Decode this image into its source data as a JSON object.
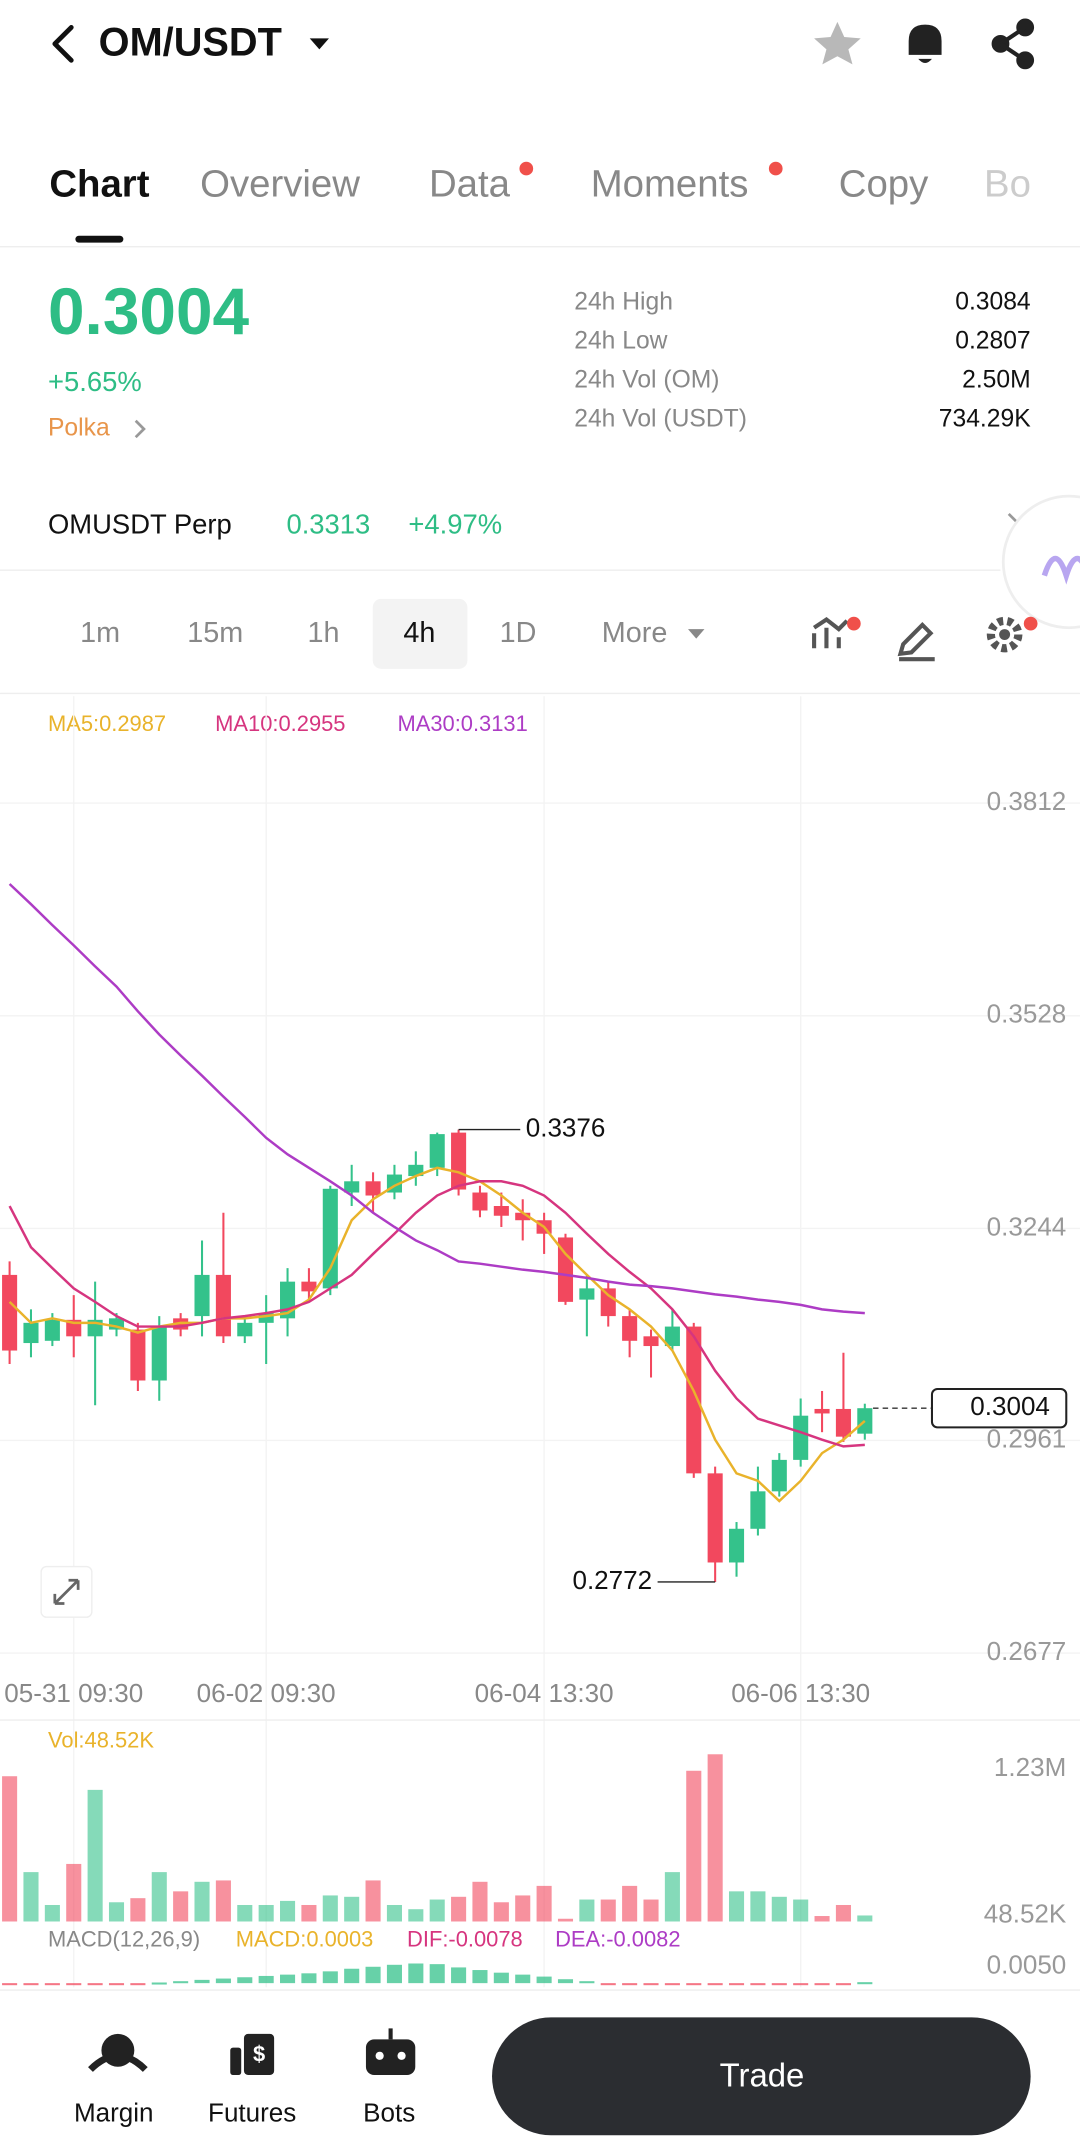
{
  "header": {
    "pair": "OM/USDT"
  },
  "tabs": [
    "Chart",
    "Overview",
    "Data",
    "Moments",
    "Copy",
    "Bo"
  ],
  "ticker": {
    "price": "0.3004",
    "change": "+5.65%",
    "tag": "Polka",
    "stats": [
      {
        "label": "24h High",
        "value": "0.3084"
      },
      {
        "label": "24h Low",
        "value": "0.2807"
      },
      {
        "label": "24h Vol (OM)",
        "value": "2.50M"
      },
      {
        "label": "24h Vol (USDT)",
        "value": "734.29K"
      }
    ]
  },
  "perp": {
    "name": "OMUSDT Perp",
    "price": "0.3313",
    "change": "+4.97%"
  },
  "intervals": [
    "1m",
    "15m",
    "1h",
    "4h",
    "1D",
    "More"
  ],
  "active_interval": 3,
  "chart_data": {
    "type": "candlestick",
    "categories": [
      null,
      null,
      null,
      "05-31 09:30",
      null,
      null,
      null,
      null,
      null,
      null,
      null,
      null,
      "06-02 09:30",
      null,
      null,
      null,
      null,
      null,
      null,
      null,
      null,
      null,
      null,
      null,
      null,
      "06-04 13:30",
      null,
      null,
      null,
      null,
      null,
      null,
      null,
      null,
      null,
      null,
      null,
      "06-06 13:30",
      null,
      null,
      null
    ],
    "open": [
      0.3182,
      0.3091,
      0.3094,
      0.3122,
      0.31,
      0.3109,
      0.3109,
      0.3041,
      0.3124,
      0.3127,
      0.3182,
      0.31,
      0.3118,
      0.3124,
      0.3173,
      0.3164,
      0.3292,
      0.3307,
      0.3292,
      0.3314,
      0.3325,
      0.3372,
      0.3292,
      0.3274,
      0.3265,
      0.3255,
      0.3232,
      0.3149,
      0.3164,
      0.3127,
      0.31,
      0.3087,
      0.3113,
      0.2917,
      0.2798,
      0.2843,
      0.2893,
      0.2935,
      0.3003,
      0.3003,
      0.297
    ],
    "high": [
      0.32,
      0.3136,
      0.3131,
      0.3155,
      0.3173,
      0.3131,
      0.3118,
      0.3127,
      0.3131,
      0.3228,
      0.3265,
      0.3127,
      0.3155,
      0.3191,
      0.3191,
      0.3301,
      0.3329,
      0.3319,
      0.3329,
      0.3347,
      0.3372,
      0.3376,
      0.3301,
      0.3292,
      0.3283,
      0.3265,
      0.3237,
      0.3182,
      0.3173,
      0.3136,
      0.3109,
      0.3136,
      0.3118,
      0.2926,
      0.2852,
      0.2926,
      0.2944,
      0.3017,
      0.3027,
      0.3078,
      0.301
    ],
    "low": [
      0.3063,
      0.3072,
      0.3087,
      0.3072,
      0.3008,
      0.31,
      0.3027,
      0.3014,
      0.31,
      0.31,
      0.3091,
      0.3091,
      0.3063,
      0.31,
      0.3149,
      0.3155,
      0.3274,
      0.3265,
      0.3283,
      0.3301,
      0.3314,
      0.3288,
      0.3259,
      0.3246,
      0.3228,
      0.321,
      0.3142,
      0.31,
      0.3113,
      0.3072,
      0.3045,
      0.3081,
      0.2911,
      0.2772,
      0.2779,
      0.2834,
      0.2886,
      0.2926,
      0.2972,
      0.2959,
      0.2962
    ],
    "close": [
      0.3081,
      0.3118,
      0.3122,
      0.31,
      0.3122,
      0.3124,
      0.3041,
      0.3113,
      0.3109,
      0.3182,
      0.31,
      0.3118,
      0.3131,
      0.3173,
      0.316,
      0.3297,
      0.3307,
      0.3288,
      0.3316,
      0.3329,
      0.337,
      0.3296,
      0.3268,
      0.3261,
      0.3255,
      0.3237,
      0.3146,
      0.3164,
      0.3127,
      0.3094,
      0.3087,
      0.3113,
      0.2917,
      0.2798,
      0.2843,
      0.2893,
      0.2935,
      0.2994,
      0.2997,
      0.2966,
      0.3004
    ],
    "up_color": "#34c28b",
    "down_color": "#f2485e",
    "ylim": [
      0.2659,
      0.3887
    ],
    "yticks": [
      0.3812,
      0.3528,
      0.3244,
      0.2961,
      0.2677
    ],
    "ma": [
      {
        "label": "MA5:0.2987",
        "color": "#e9b32b",
        "values": [
          0.3146,
          0.3118,
          0.3124,
          0.3118,
          0.3118,
          0.3113,
          0.3105,
          0.3113,
          0.3118,
          0.3118,
          0.3124,
          0.3124,
          0.3127,
          0.3131,
          0.3149,
          0.3191,
          0.3255,
          0.3283,
          0.3301,
          0.3314,
          0.3325,
          0.3319,
          0.3307,
          0.3288,
          0.3265,
          0.3246,
          0.321,
          0.3182,
          0.3155,
          0.3136,
          0.3113,
          0.3081,
          0.3027,
          0.2962,
          0.2917,
          0.2907,
          0.288,
          0.2907,
          0.2944,
          0.2962,
          0.2987
        ]
      },
      {
        "label": "MA10:0.2955",
        "color": "#d6357f",
        "values": [
          0.3274,
          0.3219,
          0.3191,
          0.3164,
          0.3146,
          0.3127,
          0.3113,
          0.3113,
          0.3113,
          0.3118,
          0.3124,
          0.3127,
          0.3131,
          0.3136,
          0.3146,
          0.3164,
          0.3182,
          0.321,
          0.3237,
          0.3265,
          0.3288,
          0.3301,
          0.3307,
          0.3307,
          0.3301,
          0.3288,
          0.3265,
          0.3237,
          0.321,
          0.3186,
          0.3164,
          0.3136,
          0.31,
          0.3054,
          0.3017,
          0.299,
          0.2981,
          0.2972,
          0.2962,
          0.2953,
          0.2955
        ]
      },
      {
        "label": "MA30:0.3131",
        "color": "#ad3cc5",
        "values": [
          0.3704,
          0.3677,
          0.3649,
          0.3622,
          0.3594,
          0.3567,
          0.3534,
          0.3503,
          0.3475,
          0.3448,
          0.342,
          0.3393,
          0.3365,
          0.3343,
          0.3325,
          0.3307,
          0.3288,
          0.3265,
          0.3246,
          0.3228,
          0.3215,
          0.32,
          0.3197,
          0.3193,
          0.3189,
          0.3186,
          0.3182,
          0.3178,
          0.3173,
          0.3169,
          0.3167,
          0.3164,
          0.316,
          0.3156,
          0.3153,
          0.3149,
          0.3146,
          0.3142,
          0.3136,
          0.3133,
          0.3131
        ]
      }
    ],
    "high_label": "0.3376",
    "low_label": "0.2772",
    "last_label": "0.3004",
    "volume": {
      "label": "Vol:48.52K",
      "ylim": [
        0,
        1370000
      ],
      "yticks": [
        {
          "value": 1230000,
          "label": "1.23M"
        },
        {
          "value": 48520,
          "label": "48.52K"
        }
      ],
      "values": [
        1171000,
        398000,
        133000,
        464000,
        1061000,
        155000,
        188000,
        398000,
        243000,
        320000,
        331000,
        133000,
        133000,
        166000,
        133000,
        210000,
        199000,
        331000,
        133000,
        99000,
        177000,
        199000,
        320000,
        155000,
        210000,
        287000,
        22000,
        177000,
        177000,
        287000,
        177000,
        398000,
        1215000,
        1348000,
        243000,
        243000,
        199000,
        177000,
        44000,
        133000,
        48520
      ]
    },
    "macd": {
      "label": "MACD(12,26,9)",
      "macd": "MACD:0.0003",
      "dif": "DIF:-0.0078",
      "dea": "DEA:-0.0082",
      "ylim": [
        -0.0021,
        0.0092
      ],
      "yticks": [
        {
          "value": 0.005,
          "label": "0.0050"
        }
      ],
      "values": [
        -0.0004,
        -0.0004,
        -0.0004,
        -0.0004,
        -0.0004,
        -0.0004,
        -0.0004,
        0.0002,
        0.0006,
        0.001,
        0.0014,
        0.0018,
        0.0022,
        0.0026,
        0.003,
        0.0036,
        0.0044,
        0.005,
        0.0056,
        0.006,
        0.0058,
        0.0048,
        0.004,
        0.0032,
        0.0026,
        0.002,
        0.0012,
        0.0006,
        -0.0004,
        -0.0006,
        -0.0006,
        -0.0006,
        -0.0006,
        -0.0006,
        -0.0006,
        -0.0006,
        -0.0006,
        -0.0004,
        -0.0004,
        -0.0002,
        0.0003
      ]
    }
  },
  "bottom_nav": [
    "Margin",
    "Futures",
    "Bots"
  ],
  "trade_button": "Trade"
}
